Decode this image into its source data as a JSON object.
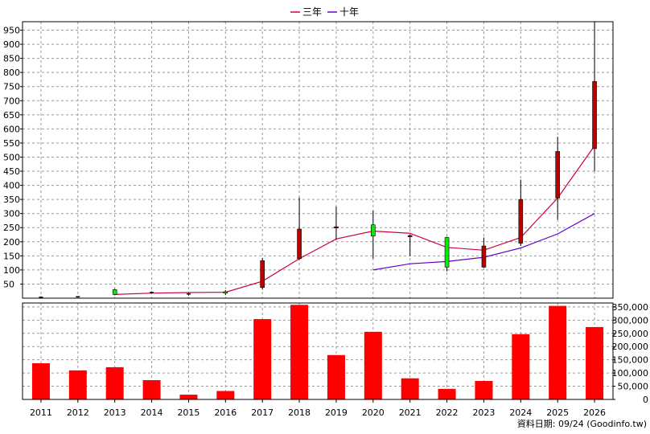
{
  "legend": [
    {
      "label": "三年",
      "color": "#cc0044"
    },
    {
      "label": "十年",
      "color": "#6600cc"
    }
  ],
  "footer": {
    "text": "資料日期: 09/24  (Goodinfo.tw)"
  },
  "chart_data": [
    {
      "type": "candlestick",
      "categories": [
        "2011",
        "2012",
        "2013",
        "2014",
        "2015",
        "2016",
        "2017",
        "2018",
        "2019",
        "2020",
        "2021",
        "2022",
        "2023",
        "2024",
        "2025",
        "2026"
      ],
      "ylim": [
        0,
        980
      ],
      "yticks": [
        50,
        100,
        150,
        200,
        250,
        300,
        350,
        400,
        450,
        500,
        550,
        600,
        650,
        700,
        750,
        800,
        850,
        900,
        950
      ],
      "grid": true,
      "candles": [
        {
          "open": 3,
          "close": 3,
          "high": 6,
          "low": 0
        },
        {
          "open": 5,
          "close": 5,
          "high": 6,
          "low": 4
        },
        {
          "open": 30,
          "close": 13,
          "high": 33,
          "low": 10
        },
        {
          "open": 20,
          "close": 20,
          "high": 24,
          "low": 17
        },
        {
          "open": 15,
          "close": 15,
          "high": 19,
          "low": 9
        },
        {
          "open": 23,
          "close": 18,
          "high": 28,
          "low": 11
        },
        {
          "open": 38,
          "close": 133,
          "high": 143,
          "low": 30
        },
        {
          "open": 140,
          "close": 245,
          "high": 357,
          "low": 135
        },
        {
          "open": 250,
          "close": 253,
          "high": 325,
          "low": 208
        },
        {
          "open": 260,
          "close": 220,
          "high": 310,
          "low": 140
        },
        {
          "open": 220,
          "close": 222,
          "high": 225,
          "low": 150
        },
        {
          "open": 215,
          "close": 110,
          "high": 218,
          "low": 95
        },
        {
          "open": 110,
          "close": 185,
          "high": 215,
          "low": 108
        },
        {
          "open": 195,
          "close": 350,
          "high": 420,
          "low": 185
        },
        {
          "open": 355,
          "close": 520,
          "high": 572,
          "low": 278
        },
        {
          "open": 530,
          "close": 768,
          "high": 980,
          "low": 450
        }
      ],
      "series": [
        {
          "name": "三年",
          "x": [
            "2013",
            "2014",
            "2015",
            "2016",
            "2017",
            "2018",
            "2019",
            "2020",
            "2021",
            "2022",
            "2023",
            "2024",
            "2025",
            "2026"
          ],
          "values": [
            13,
            18,
            20,
            21,
            60,
            140,
            210,
            238,
            230,
            180,
            170,
            215,
            355,
            540
          ]
        },
        {
          "name": "十年",
          "x": [
            "2020",
            "2021",
            "2022",
            "2023",
            "2024",
            "2025",
            "2026"
          ],
          "values": [
            100,
            122,
            130,
            145,
            178,
            228,
            300
          ]
        }
      ]
    },
    {
      "type": "bar",
      "categories": [
        "2011",
        "2012",
        "2013",
        "2014",
        "2015",
        "2016",
        "2017",
        "2018",
        "2019",
        "2020",
        "2021",
        "2022",
        "2023",
        "2024",
        "2025",
        "2026"
      ],
      "values": [
        137000,
        110000,
        122000,
        73000,
        18000,
        32000,
        304000,
        358000,
        168000,
        256000,
        80000,
        40000,
        70000,
        247000,
        354000,
        274000
      ],
      "ylim": [
        0,
        365000
      ],
      "ytick_labels": [
        "0",
        "50,000",
        "100,000",
        "150,000",
        "200,000",
        "250,000",
        "300,000",
        "350,000"
      ],
      "yticks": [
        0,
        50000,
        100000,
        150000,
        200000,
        250000,
        300000,
        350000
      ],
      "color": "#ff0000",
      "grid": true
    }
  ]
}
